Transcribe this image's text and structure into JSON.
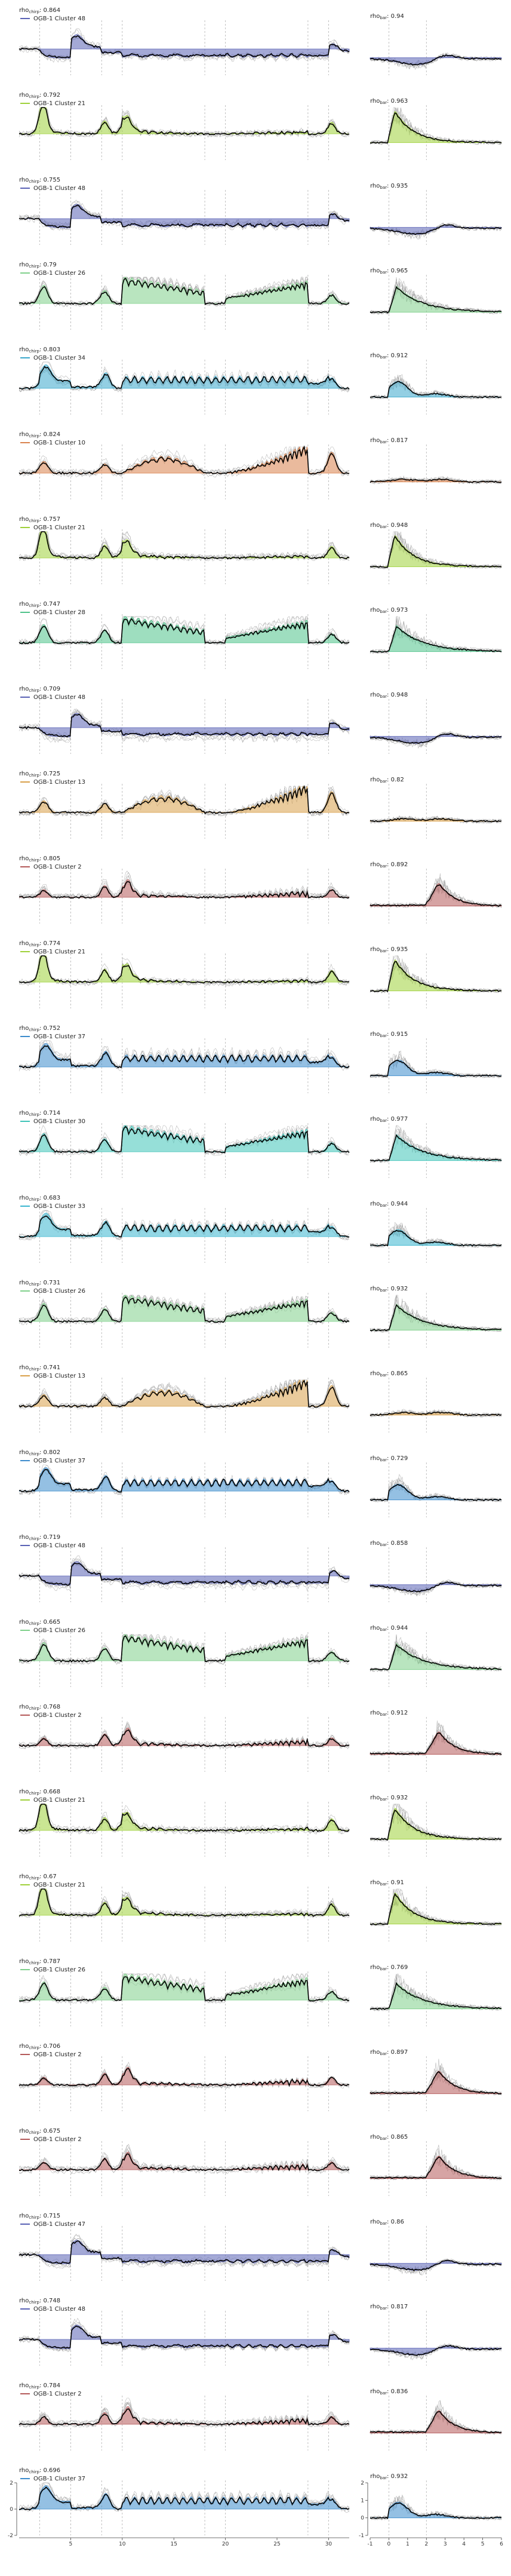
{
  "chart_data": {
    "type": "line",
    "chirp_label_prefix": "rho",
    "chirp_label_sub": "chirp",
    "bar_label_prefix": "rho",
    "bar_label_sub": "bar",
    "legend_prefix": "OGB-1 Cluster",
    "chirp_axis": {
      "xlim": [
        0,
        32
      ],
      "xticks": [
        0,
        5,
        10,
        15,
        20,
        25,
        30
      ],
      "ylim": [
        -2,
        2
      ],
      "yticks": [
        -2,
        0,
        2
      ],
      "stim_lines": [
        2,
        5,
        8,
        10,
        18,
        20,
        28,
        30
      ]
    },
    "bar_axis": {
      "xlim": [
        -1,
        6
      ],
      "xticks": [
        -1,
        0,
        1,
        2,
        3,
        4,
        5,
        6
      ],
      "ylim": [
        -1,
        2
      ],
      "yticks": [
        -1,
        0,
        1,
        2
      ],
      "stim_lines": [
        0,
        2
      ]
    },
    "rows": [
      {
        "rho_chirp": "0.864",
        "rho_bar": "0.94",
        "cluster": "48",
        "color": "#5a62b5",
        "kind": "off"
      },
      {
        "rho_chirp": "0.792",
        "rho_bar": "0.963",
        "cluster": "21",
        "color": "#9fd13a",
        "kind": "on_transient"
      },
      {
        "rho_chirp": "0.755",
        "rho_bar": "0.935",
        "cluster": "48",
        "color": "#5a62b5",
        "kind": "off"
      },
      {
        "rho_chirp": "0.79",
        "rho_bar": "0.965",
        "cluster": "26",
        "color": "#7fd08b",
        "kind": "on_sustained"
      },
      {
        "rho_chirp": "0.803",
        "rho_bar": "0.912",
        "cluster": "34",
        "color": "#3aa8cc",
        "kind": "on_off"
      },
      {
        "rho_chirp": "0.824",
        "rho_bar": "0.817",
        "cluster": "10",
        "color": "#d9824d",
        "kind": "on_chirp"
      },
      {
        "rho_chirp": "0.757",
        "rho_bar": "0.948",
        "cluster": "21",
        "color": "#9fd13a",
        "kind": "on_transient"
      },
      {
        "rho_chirp": "0.747",
        "rho_bar": "0.973",
        "cluster": "28",
        "color": "#4fc28a",
        "kind": "on_sustained"
      },
      {
        "rho_chirp": "0.709",
        "rho_bar": "0.948",
        "cluster": "48",
        "color": "#5a62b5",
        "kind": "off"
      },
      {
        "rho_chirp": "0.725",
        "rho_bar": "0.82",
        "cluster": "13",
        "color": "#d9a04a",
        "kind": "on_chirp"
      },
      {
        "rho_chirp": "0.805",
        "rho_bar": "0.892",
        "cluster": "2",
        "color": "#b45a5a",
        "kind": "on_small"
      },
      {
        "rho_chirp": "0.774",
        "rho_bar": "0.935",
        "cluster": "21",
        "color": "#9fd13a",
        "kind": "on_transient"
      },
      {
        "rho_chirp": "0.752",
        "rho_bar": "0.915",
        "cluster": "37",
        "color": "#3d8ccc",
        "kind": "on_off"
      },
      {
        "rho_chirp": "0.714",
        "rho_bar": "0.977",
        "cluster": "30",
        "color": "#3fc4b8",
        "kind": "on_sustained"
      },
      {
        "rho_chirp": "0.683",
        "rho_bar": "0.944",
        "cluster": "33",
        "color": "#3bb6d0",
        "kind": "on_off"
      },
      {
        "rho_chirp": "0.731",
        "rho_bar": "0.932",
        "cluster": "26",
        "color": "#7fd08b",
        "kind": "on_sustained"
      },
      {
        "rho_chirp": "0.741",
        "rho_bar": "0.865",
        "cluster": "13",
        "color": "#d9a04a",
        "kind": "on_chirp"
      },
      {
        "rho_chirp": "0.802",
        "rho_bar": "0.729",
        "cluster": "37",
        "color": "#3d8ccc",
        "kind": "on_off"
      },
      {
        "rho_chirp": "0.719",
        "rho_bar": "0.858",
        "cluster": "48",
        "color": "#5a62b5",
        "kind": "off"
      },
      {
        "rho_chirp": "0.665",
        "rho_bar": "0.944",
        "cluster": "26",
        "color": "#7fd08b",
        "kind": "on_sustained"
      },
      {
        "rho_chirp": "0.768",
        "rho_bar": "0.912",
        "cluster": "2",
        "color": "#b45a5a",
        "kind": "on_small"
      },
      {
        "rho_chirp": "0.668",
        "rho_bar": "0.932",
        "cluster": "21",
        "color": "#9fd13a",
        "kind": "on_transient"
      },
      {
        "rho_chirp": "0.67",
        "rho_bar": "0.91",
        "cluster": "21",
        "color": "#9fd13a",
        "kind": "on_transient"
      },
      {
        "rho_chirp": "0.787",
        "rho_bar": "0.769",
        "cluster": "26",
        "color": "#7fd08b",
        "kind": "on_sustained"
      },
      {
        "rho_chirp": "0.706",
        "rho_bar": "0.897",
        "cluster": "2",
        "color": "#b45a5a",
        "kind": "on_small"
      },
      {
        "rho_chirp": "0.675",
        "rho_bar": "0.865",
        "cluster": "2",
        "color": "#b45a5a",
        "kind": "on_small"
      },
      {
        "rho_chirp": "0.715",
        "rho_bar": "0.86",
        "cluster": "47",
        "color": "#5a62b5",
        "kind": "off"
      },
      {
        "rho_chirp": "0.748",
        "rho_bar": "0.817",
        "cluster": "48",
        "color": "#5a62b5",
        "kind": "off"
      },
      {
        "rho_chirp": "0.784",
        "rho_bar": "0.836",
        "cluster": "2",
        "color": "#b45a5a",
        "kind": "on_small"
      },
      {
        "rho_chirp": "0.696",
        "rho_bar": "0.932",
        "cluster": "37",
        "color": "#3d8ccc",
        "kind": "on_off"
      }
    ]
  }
}
